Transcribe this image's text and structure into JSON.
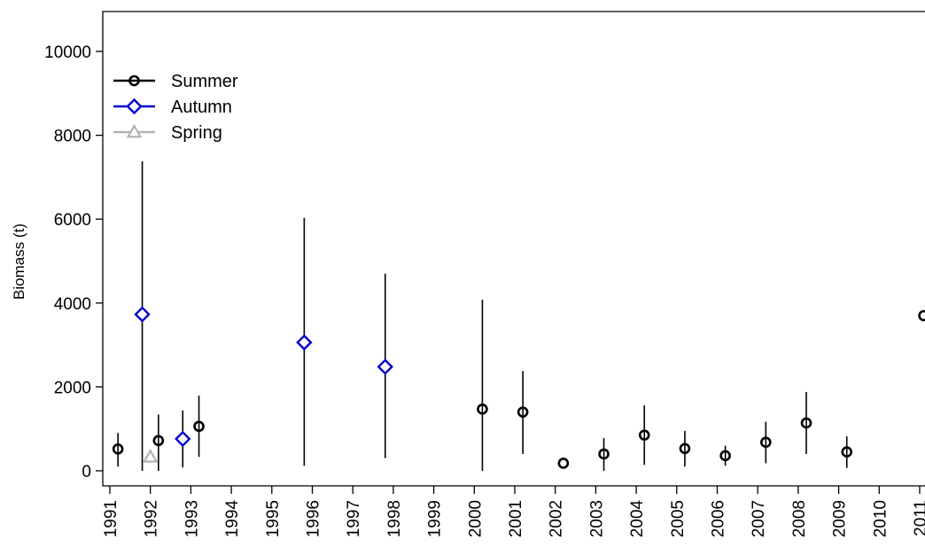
{
  "chart_data": {
    "type": "scatter",
    "title": "",
    "xlabel": "",
    "ylabel": "Biomass (t)",
    "ylim": [
      -400,
      10900
    ],
    "xlim": [
      1990.8,
      2011.1
    ],
    "x_ticks": [
      "1991",
      "1992",
      "1993",
      "1994",
      "1995",
      "1996",
      "1997",
      "1998",
      "1999",
      "2000",
      "2001",
      "2002",
      "2003",
      "2004",
      "2005",
      "2006",
      "2007",
      "2008",
      "2009",
      "2010",
      "2011"
    ],
    "y_ticks": [
      0,
      2000,
      4000,
      6000,
      8000,
      10000
    ],
    "legend_position": "top-left",
    "grid": false,
    "series": [
      {
        "name": "Summer",
        "color": "#000000",
        "marker": "circle",
        "points": [
          {
            "x": 1991.2,
            "y": 520,
            "low": 100,
            "high": 900
          },
          {
            "x": 1992.2,
            "y": 720,
            "low": 0,
            "high": 1340
          },
          {
            "x": 1993.2,
            "y": 1060,
            "low": 330,
            "high": 1790
          },
          {
            "x": 2000.2,
            "y": 1470,
            "low": 0,
            "high": 4080
          },
          {
            "x": 2001.2,
            "y": 1400,
            "low": 400,
            "high": 2380
          },
          {
            "x": 2002.2,
            "y": 180,
            "low": 180,
            "high": 180
          },
          {
            "x": 2003.2,
            "y": 400,
            "low": 0,
            "high": 780
          },
          {
            "x": 2004.2,
            "y": 850,
            "low": 140,
            "high": 1560
          },
          {
            "x": 2005.2,
            "y": 530,
            "low": 100,
            "high": 950
          },
          {
            "x": 2006.2,
            "y": 360,
            "low": 120,
            "high": 600
          },
          {
            "x": 2007.2,
            "y": 680,
            "low": 180,
            "high": 1170
          },
          {
            "x": 2008.2,
            "y": 1140,
            "low": 400,
            "high": 1880
          },
          {
            "x": 2009.2,
            "y": 450,
            "low": 70,
            "high": 820
          },
          {
            "x": 2011.1,
            "y": 3700,
            "low": 3700,
            "high": 3700
          }
        ]
      },
      {
        "name": "Autumn",
        "color": "#0000cc",
        "marker": "diamond",
        "points": [
          {
            "x": 1991.8,
            "y": 3730,
            "low": 0,
            "high": 7380
          },
          {
            "x": 1992.8,
            "y": 760,
            "low": 80,
            "high": 1440
          },
          {
            "x": 1995.8,
            "y": 3060,
            "low": 120,
            "high": 6030
          },
          {
            "x": 1997.8,
            "y": 2480,
            "low": 300,
            "high": 4700
          }
        ]
      },
      {
        "name": "Spring",
        "color": "#b3b3b3",
        "marker": "triangle",
        "points": [
          {
            "x": 1992.0,
            "y": 330,
            "low": 330,
            "high": 330
          }
        ]
      }
    ]
  }
}
